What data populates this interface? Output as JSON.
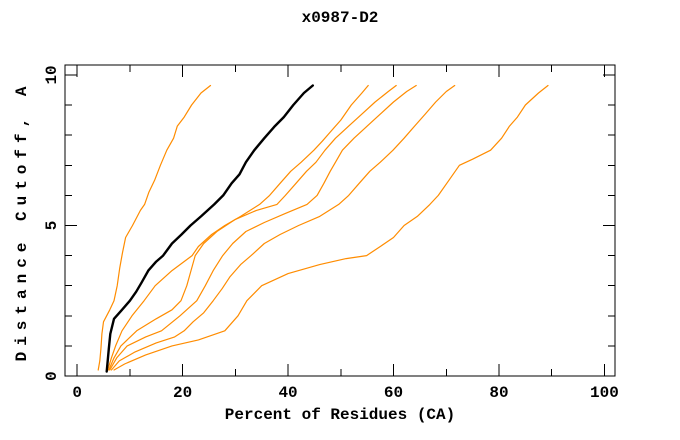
{
  "window": {
    "background": "#ffffff"
  },
  "chart_data": {
    "type": "line",
    "title": "x0987-D2",
    "xlabel": "Percent of Residues (CA)",
    "ylabel": "Distance Cutoff, A",
    "xlim": [
      -2.3,
      102
    ],
    "ylim": [
      0,
      10.33
    ],
    "x_major_ticks": [
      0,
      20,
      40,
      60,
      80,
      100
    ],
    "x_minor_ticks": [
      10,
      30,
      50,
      70,
      90
    ],
    "y_major_ticks": [
      0,
      5,
      10
    ],
    "y_minor_ticks": [
      1,
      2,
      3,
      4,
      6,
      7,
      8,
      9
    ],
    "grid": false,
    "legend": "none",
    "frame": "box-with-mirrored-ticks",
    "colors": {
      "background": "#ffffff",
      "axis": "#000000",
      "orange_series": "#ff8c00",
      "highlight_series": "#000000"
    },
    "series": [
      {
        "name": "orange-1",
        "color": "#ff8c00",
        "width": 1.2,
        "points": [
          [
            4.0,
            0.2
          ],
          [
            4.3,
            0.5
          ],
          [
            4.5,
            0.9
          ],
          [
            4.7,
            1.4
          ],
          [
            5.0,
            1.8
          ],
          [
            6.2,
            2.2
          ],
          [
            7.0,
            2.5
          ],
          [
            7.6,
            3.0
          ],
          [
            8.1,
            3.6
          ],
          [
            8.6,
            4.1
          ],
          [
            9.2,
            4.6
          ],
          [
            10.5,
            5.0
          ],
          [
            12.0,
            5.5
          ],
          [
            12.8,
            5.7
          ],
          [
            13.6,
            6.1
          ],
          [
            14.7,
            6.5
          ],
          [
            15.8,
            7.0
          ],
          [
            17.0,
            7.5
          ],
          [
            18.3,
            7.9
          ],
          [
            19.0,
            8.3
          ],
          [
            20.3,
            8.6
          ],
          [
            21.7,
            9.0
          ],
          [
            23.5,
            9.4
          ],
          [
            25.3,
            9.65
          ]
        ]
      },
      {
        "name": "orange-2",
        "color": "#ff8c00",
        "width": 1.2,
        "points": [
          [
            5.8,
            0.2
          ],
          [
            6.5,
            0.6
          ],
          [
            7.3,
            1.0
          ],
          [
            8.5,
            1.5
          ],
          [
            10.4,
            2.0
          ],
          [
            12.7,
            2.5
          ],
          [
            14.8,
            3.0
          ],
          [
            18.0,
            3.5
          ],
          [
            21.8,
            4.0
          ],
          [
            23.0,
            4.3
          ],
          [
            25.5,
            4.7
          ],
          [
            28.0,
            5.0
          ],
          [
            31.0,
            5.3
          ],
          [
            34.6,
            5.7
          ],
          [
            36.5,
            6.0
          ],
          [
            38.5,
            6.4
          ],
          [
            40.5,
            6.8
          ],
          [
            42.5,
            7.1
          ],
          [
            44.9,
            7.5
          ],
          [
            46.5,
            7.8
          ],
          [
            48.0,
            8.1
          ],
          [
            50.0,
            8.5
          ],
          [
            52.0,
            9.0
          ],
          [
            54.0,
            9.4
          ],
          [
            55.2,
            9.65
          ]
        ]
      },
      {
        "name": "orange-3",
        "color": "#ff8c00",
        "width": 1.2,
        "points": [
          [
            6.0,
            0.2
          ],
          [
            7.0,
            0.6
          ],
          [
            8.3,
            1.0
          ],
          [
            11.3,
            1.5
          ],
          [
            15.0,
            1.9
          ],
          [
            18.0,
            2.2
          ],
          [
            19.7,
            2.5
          ],
          [
            20.8,
            3.0
          ],
          [
            21.6,
            3.5
          ],
          [
            22.4,
            4.0
          ],
          [
            24.0,
            4.4
          ],
          [
            26.5,
            4.8
          ],
          [
            30.0,
            5.2
          ],
          [
            34.0,
            5.5
          ],
          [
            37.9,
            5.7
          ],
          [
            39.5,
            6.0
          ],
          [
            41.5,
            6.4
          ],
          [
            43.5,
            6.8
          ],
          [
            45.3,
            7.1
          ],
          [
            47.0,
            7.5
          ],
          [
            49.0,
            7.9
          ],
          [
            51.5,
            8.3
          ],
          [
            54.0,
            8.7
          ],
          [
            56.5,
            9.1
          ],
          [
            59.0,
            9.45
          ],
          [
            60.5,
            9.65
          ]
        ]
      },
      {
        "name": "orange-4",
        "color": "#ff8c00",
        "width": 1.2,
        "points": [
          [
            6.2,
            0.2
          ],
          [
            7.5,
            0.6
          ],
          [
            9.5,
            1.0
          ],
          [
            13.0,
            1.3
          ],
          [
            16.0,
            1.5
          ],
          [
            19.5,
            2.0
          ],
          [
            22.7,
            2.5
          ],
          [
            24.3,
            3.0
          ],
          [
            25.8,
            3.5
          ],
          [
            27.6,
            4.0
          ],
          [
            29.5,
            4.4
          ],
          [
            32.0,
            4.8
          ],
          [
            35.5,
            5.1
          ],
          [
            39.5,
            5.4
          ],
          [
            43.6,
            5.7
          ],
          [
            45.5,
            6.0
          ],
          [
            46.8,
            6.4
          ],
          [
            48.0,
            6.8
          ],
          [
            49.0,
            7.1
          ],
          [
            50.3,
            7.5
          ],
          [
            52.5,
            7.9
          ],
          [
            55.0,
            8.3
          ],
          [
            57.5,
            8.7
          ],
          [
            60.0,
            9.1
          ],
          [
            62.5,
            9.45
          ],
          [
            64.3,
            9.65
          ]
        ]
      },
      {
        "name": "orange-5",
        "color": "#ff8c00",
        "width": 1.2,
        "points": [
          [
            6.5,
            0.2
          ],
          [
            8.0,
            0.5
          ],
          [
            11.0,
            0.8
          ],
          [
            15.0,
            1.1
          ],
          [
            18.5,
            1.3
          ],
          [
            20.3,
            1.5
          ],
          [
            22.0,
            1.8
          ],
          [
            24.0,
            2.1
          ],
          [
            25.8,
            2.5
          ],
          [
            27.5,
            2.9
          ],
          [
            29.0,
            3.3
          ],
          [
            31.0,
            3.7
          ],
          [
            33.0,
            4.0
          ],
          [
            35.5,
            4.4
          ],
          [
            38.5,
            4.7
          ],
          [
            42.0,
            5.0
          ],
          [
            46.0,
            5.3
          ],
          [
            49.6,
            5.7
          ],
          [
            51.5,
            6.0
          ],
          [
            53.5,
            6.4
          ],
          [
            55.5,
            6.8
          ],
          [
            57.5,
            7.1
          ],
          [
            59.9,
            7.5
          ],
          [
            62.0,
            7.9
          ],
          [
            64.0,
            8.3
          ],
          [
            66.0,
            8.7
          ],
          [
            68.0,
            9.1
          ],
          [
            70.0,
            9.45
          ],
          [
            71.6,
            9.65
          ]
        ]
      },
      {
        "name": "orange-6",
        "color": "#ff8c00",
        "width": 1.2,
        "points": [
          [
            7.0,
            0.2
          ],
          [
            9.0,
            0.4
          ],
          [
            13.0,
            0.7
          ],
          [
            18.0,
            1.0
          ],
          [
            23.0,
            1.2
          ],
          [
            28.0,
            1.5
          ],
          [
            30.5,
            2.0
          ],
          [
            32.2,
            2.5
          ],
          [
            35.0,
            3.0
          ],
          [
            40.0,
            3.4
          ],
          [
            46.0,
            3.7
          ],
          [
            51.0,
            3.9
          ],
          [
            54.9,
            4.0
          ],
          [
            57.5,
            4.3
          ],
          [
            60.0,
            4.6
          ],
          [
            62.0,
            5.0
          ],
          [
            64.5,
            5.3
          ],
          [
            66.9,
            5.7
          ],
          [
            68.5,
            6.0
          ],
          [
            70.5,
            6.5
          ],
          [
            72.5,
            7.0
          ],
          [
            75.0,
            7.2
          ],
          [
            78.4,
            7.5
          ],
          [
            80.5,
            7.9
          ],
          [
            82.0,
            8.3
          ],
          [
            83.5,
            8.6
          ],
          [
            85.0,
            9.0
          ],
          [
            87.5,
            9.4
          ],
          [
            89.3,
            9.65
          ]
        ]
      },
      {
        "name": "black-highlight",
        "color": "#000000",
        "width": 2.4,
        "points": [
          [
            5.6,
            0.15
          ],
          [
            5.8,
            0.5
          ],
          [
            6.0,
            0.9
          ],
          [
            6.3,
            1.4
          ],
          [
            7.0,
            1.9
          ],
          [
            8.5,
            2.2
          ],
          [
            10.0,
            2.5
          ],
          [
            11.2,
            2.8
          ],
          [
            12.2,
            3.1
          ],
          [
            13.5,
            3.5
          ],
          [
            15.0,
            3.8
          ],
          [
            16.3,
            4.0
          ],
          [
            18.0,
            4.4
          ],
          [
            19.8,
            4.7
          ],
          [
            21.5,
            5.0
          ],
          [
            23.5,
            5.3
          ],
          [
            26.0,
            5.7
          ],
          [
            27.7,
            6.0
          ],
          [
            29.3,
            6.4
          ],
          [
            30.8,
            6.7
          ],
          [
            32.0,
            7.1
          ],
          [
            33.6,
            7.5
          ],
          [
            35.5,
            7.9
          ],
          [
            37.5,
            8.3
          ],
          [
            39.2,
            8.6
          ],
          [
            41.0,
            9.0
          ],
          [
            43.0,
            9.4
          ],
          [
            44.7,
            9.65
          ]
        ]
      }
    ]
  }
}
